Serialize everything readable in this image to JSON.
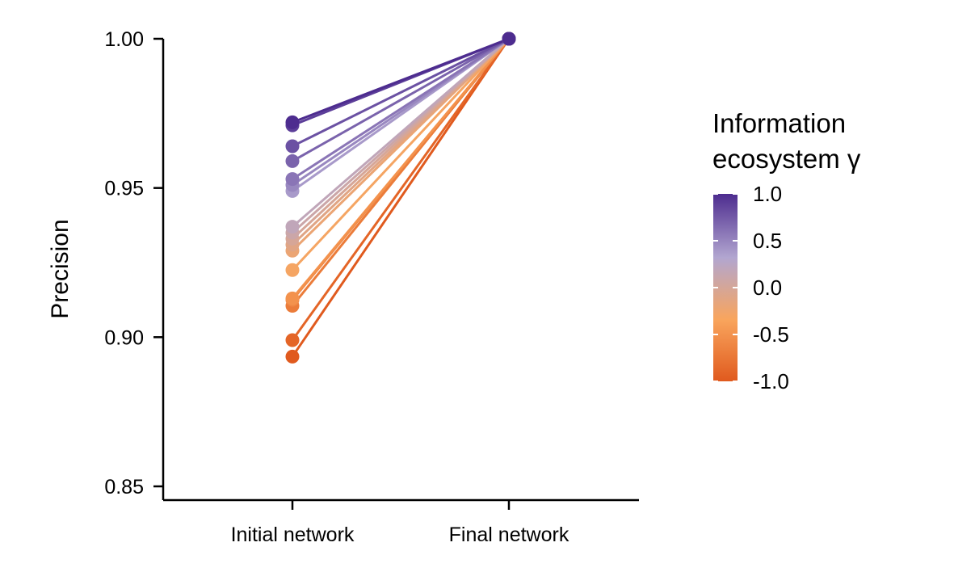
{
  "chart_data": {
    "type": "line",
    "title": "",
    "xlabel": "",
    "ylabel": "Precision",
    "categories": [
      "Initial network",
      "Final network"
    ],
    "ylim": [
      0.845,
      1.005
    ],
    "yticks": [
      "0.85",
      "0.90",
      "0.95",
      "1.00"
    ],
    "grid": false,
    "legend": {
      "title_line1": "Information",
      "title_line2": "ecosystem γ",
      "type": "colorbar",
      "position": "right",
      "range": [
        -1.0,
        1.0
      ],
      "ticks": [
        "1.0",
        "0.5",
        "0.0",
        "-0.5",
        "-1.0"
      ],
      "colors": [
        "#e05a1e",
        "#f9a55d",
        "#b2a6d0",
        "#4d2c8f"
      ]
    },
    "series": [
      {
        "gamma": 1.0,
        "values": [
          0.972,
          1.0
        ]
      },
      {
        "gamma": 0.9,
        "values": [
          0.971,
          1.0
        ]
      },
      {
        "gamma": 0.8,
        "values": [
          0.964,
          1.0
        ]
      },
      {
        "gamma": 0.7,
        "values": [
          0.959,
          1.0
        ]
      },
      {
        "gamma": 0.6,
        "values": [
          0.953,
          1.0
        ]
      },
      {
        "gamma": 0.5,
        "values": [
          0.951,
          1.0
        ]
      },
      {
        "gamma": 0.4,
        "values": [
          0.949,
          1.0
        ]
      },
      {
        "gamma": 0.2,
        "values": [
          0.937,
          1.0
        ]
      },
      {
        "gamma": 0.1,
        "values": [
          0.935,
          1.0
        ]
      },
      {
        "gamma": 0.0,
        "values": [
          0.933,
          1.0
        ]
      },
      {
        "gamma": -0.1,
        "values": [
          0.931,
          1.0
        ]
      },
      {
        "gamma": -0.2,
        "values": [
          0.929,
          1.0
        ]
      },
      {
        "gamma": -0.3,
        "values": [
          0.9225,
          1.0
        ]
      },
      {
        "gamma": -0.5,
        "values": [
          0.913,
          1.0
        ]
      },
      {
        "gamma": -0.6,
        "values": [
          0.9125,
          1.0
        ]
      },
      {
        "gamma": -0.7,
        "values": [
          0.9105,
          1.0
        ]
      },
      {
        "gamma": -0.9,
        "values": [
          0.899,
          1.0
        ]
      },
      {
        "gamma": -1.0,
        "values": [
          0.8935,
          1.0
        ]
      }
    ]
  }
}
